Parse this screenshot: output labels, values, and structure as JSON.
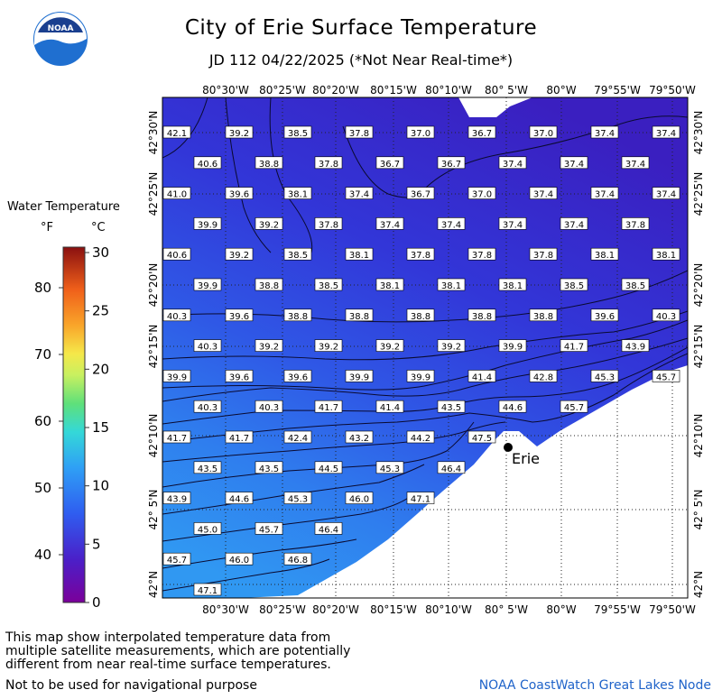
{
  "header": {
    "title": "City of Erie Surface Temperature",
    "subtitle": "JD 112 04/22/2025 (*Not Near Real-time*)",
    "logo_text": "NOAA"
  },
  "legend": {
    "title": "Water Temperature",
    "unit_f": "°F",
    "unit_c": "°C",
    "f_ticks": [
      "80",
      "70",
      "60",
      "50",
      "40"
    ],
    "c_ticks": [
      "30",
      "25",
      "20",
      "15",
      "10",
      "5",
      "0"
    ]
  },
  "axes": {
    "lon_labels": [
      "80°30'W",
      "80°25'W",
      "80°20'W",
      "80°15'W",
      "80°10'W",
      "80° 5'W",
      "80°W",
      "79°55'W",
      "79°50'W"
    ],
    "lat_labels": [
      "42°30'N",
      "42°25'N",
      "42°20'N",
      "42°15'N",
      "42°10'N",
      "42° 5'N",
      "42°N"
    ]
  },
  "map": {
    "city_label": "Erie",
    "temperature_rows": [
      [
        "42.1",
        "39.2",
        "38.5",
        "37.8",
        "37.0",
        "36.7",
        "37.0",
        "37.4",
        "37.4"
      ],
      [
        "40.6",
        "38.8",
        "37.8",
        "36.7",
        "36.7",
        "37.4",
        "37.4",
        "37.4"
      ],
      [
        "41.0",
        "39.6",
        "38.1",
        "37.4",
        "36.7",
        "37.0",
        "37.4",
        "37.4",
        "37.4"
      ],
      [
        "39.9",
        "39.2",
        "37.8",
        "37.4",
        "37.4",
        "37.4",
        "37.4",
        "37.8"
      ],
      [
        "40.6",
        "39.2",
        "38.5",
        "38.1",
        "37.8",
        "37.8",
        "37.8",
        "38.1",
        "38.1"
      ],
      [
        "39.9",
        "38.8",
        "38.5",
        "38.1",
        "38.1",
        "38.1",
        "38.5",
        "38.5"
      ],
      [
        "40.3",
        "39.6",
        "38.8",
        "38.8",
        "38.8",
        "38.8",
        "38.8",
        "39.6",
        "40.3"
      ],
      [
        "40.3",
        "39.2",
        "39.2",
        "39.2",
        "39.2",
        "39.9",
        "41.7",
        "43.9"
      ],
      [
        "39.9",
        "39.6",
        "39.6",
        "39.9",
        "39.9",
        "41.4",
        "42.8",
        "45.3",
        "45.7"
      ],
      [
        "40.3",
        "40.3",
        "41.7",
        "41.4",
        "43.5",
        "44.6",
        "45.7"
      ],
      [
        "41.7",
        "41.7",
        "42.4",
        "43.2",
        "44.2",
        "47.5"
      ],
      [
        "43.5",
        "43.5",
        "44.5",
        "45.3",
        "46.4"
      ],
      [
        "43.9",
        "44.6",
        "45.3",
        "46.0",
        "47.1"
      ],
      [
        "45.0",
        "45.7",
        "46.4"
      ],
      [
        "45.7",
        "46.0",
        "46.8"
      ],
      [
        "47.1"
      ]
    ]
  },
  "footer": {
    "note_lines": [
      "This map show interpolated temperature data from",
      "multiple satellite measurements, which are potentially",
      "different from near real-time surface temperatures."
    ],
    "nav_warning": "Not to be used for navigational purpose",
    "credit": "NOAA CoastWatch Great Lakes Node"
  },
  "colors": {
    "cold": "#3b2fd0",
    "mid": "#2f56e8",
    "warm": "#2f8ff0",
    "land": "#ffffff",
    "credit": "#1f63c9"
  }
}
